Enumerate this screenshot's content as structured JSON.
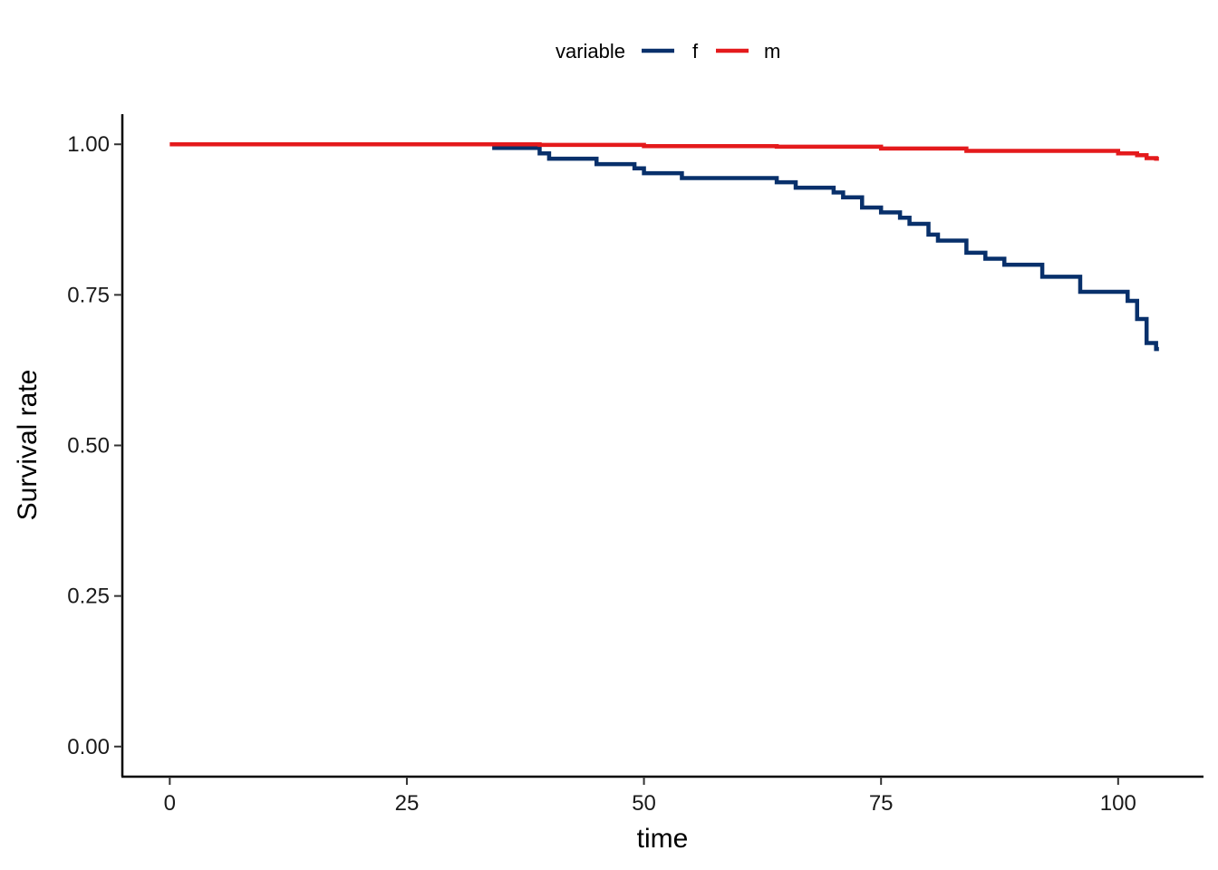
{
  "chart_data": {
    "type": "line",
    "step": true,
    "xlabel": "time",
    "ylabel": "Survival rate",
    "xlim": [
      -5,
      109
    ],
    "ylim": [
      -0.05,
      1.05
    ],
    "x_ticks": [
      0,
      25,
      50,
      75,
      100
    ],
    "y_ticks": [
      0.0,
      0.25,
      0.5,
      0.75,
      1.0
    ],
    "x_tick_labels": [
      "0",
      "25",
      "50",
      "75",
      "100"
    ],
    "y_tick_labels": [
      "0.00",
      "0.25",
      "0.50",
      "0.75",
      "1.00"
    ],
    "grid": false,
    "legend": {
      "title": "variable",
      "position": "top"
    },
    "series": [
      {
        "name": "f",
        "color": "#08306b",
        "x": [
          34,
          39,
          40,
          45,
          49,
          50,
          54,
          64,
          66,
          70,
          71,
          73,
          75,
          77,
          78,
          80,
          81,
          84,
          86,
          88,
          92,
          96,
          101,
          102,
          103,
          104
        ],
        "y": [
          0.994,
          0.985,
          0.976,
          0.967,
          0.96,
          0.952,
          0.944,
          0.937,
          0.928,
          0.92,
          0.912,
          0.895,
          0.887,
          0.878,
          0.868,
          0.85,
          0.84,
          0.82,
          0.81,
          0.8,
          0.78,
          0.755,
          0.74,
          0.71,
          0.67,
          0.66
        ]
      },
      {
        "name": "m",
        "color": "#e41a1c",
        "x": [
          0,
          39,
          50,
          64,
          75,
          84,
          100,
          102,
          103,
          104
        ],
        "y": [
          1.0,
          0.999,
          0.997,
          0.996,
          0.993,
          0.989,
          0.985,
          0.982,
          0.977,
          0.976
        ]
      }
    ]
  }
}
